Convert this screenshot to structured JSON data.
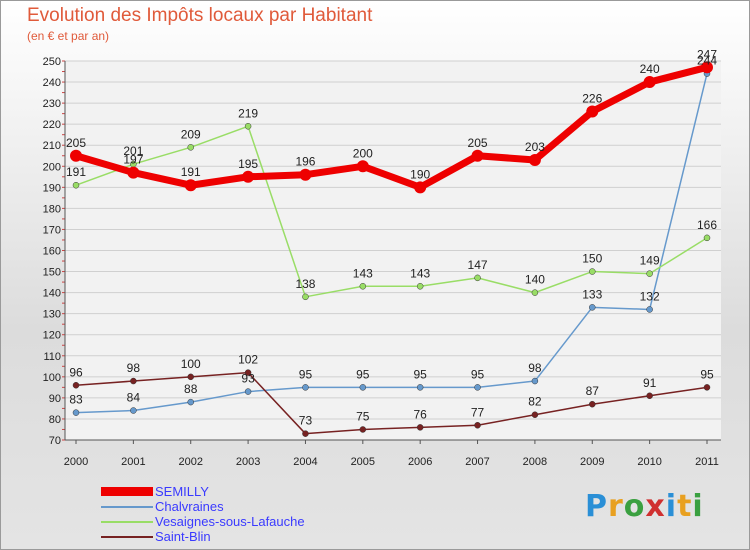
{
  "header": {
    "title": "Evolution des Impôts locaux par Habitant",
    "subtitle": "(en € et par an)"
  },
  "logo": {
    "text": "Proxiti",
    "colors": [
      "#2a8fd6",
      "#e8a020",
      "#3aa040",
      "#d03030",
      "#2a8fd6",
      "#e8a020",
      "#3aa040"
    ]
  },
  "chart_data": {
    "type": "line",
    "x": [
      "2000",
      "2001",
      "2002",
      "2003",
      "2004",
      "2005",
      "2006",
      "2007",
      "2008",
      "2009",
      "2010",
      "2011"
    ],
    "ylim": [
      70,
      250
    ],
    "yticks": [
      70,
      80,
      90,
      100,
      110,
      120,
      130,
      140,
      150,
      160,
      170,
      180,
      190,
      200,
      210,
      220,
      230,
      240,
      250
    ],
    "grid": "horizontal",
    "legend_position": "bottom-left",
    "series": [
      {
        "name": "SEMILLY",
        "color": "#ee0000",
        "thick": true,
        "values": [
          205,
          197,
          191,
          195,
          196,
          200,
          190,
          205,
          203,
          226,
          240,
          247
        ],
        "labels": [
          "205",
          "197",
          "191",
          "195",
          "196",
          "200",
          "190",
          "205",
          "203",
          "226",
          "240",
          "247"
        ]
      },
      {
        "name": "Chalvraines",
        "color": "#6699cc",
        "thick": false,
        "values": [
          83,
          84,
          88,
          93,
          95,
          95,
          95,
          95,
          98,
          133,
          132,
          244
        ],
        "labels": [
          "83",
          "84",
          "88",
          "93",
          "95",
          "95",
          "95",
          "95",
          "98",
          "133",
          "132",
          "244"
        ]
      },
      {
        "name": "Vesaignes-sous-Lafauche",
        "color": "#99dd66",
        "thick": false,
        "values": [
          191,
          201,
          209,
          219,
          138,
          143,
          143,
          147,
          140,
          150,
          149,
          166
        ],
        "labels": [
          "191",
          "201",
          "209",
          "219",
          "138",
          "143",
          "143",
          "147",
          "140",
          "150",
          "149",
          "166"
        ]
      },
      {
        "name": "Saint-Blin",
        "color": "#772222",
        "thick": false,
        "values": [
          96,
          98,
          100,
          102,
          73,
          75,
          76,
          77,
          82,
          87,
          91,
          95
        ],
        "labels": [
          "96",
          "98",
          "100",
          "102",
          "73",
          "75",
          "76",
          "77",
          "82",
          "87",
          "91",
          "95"
        ]
      }
    ]
  }
}
